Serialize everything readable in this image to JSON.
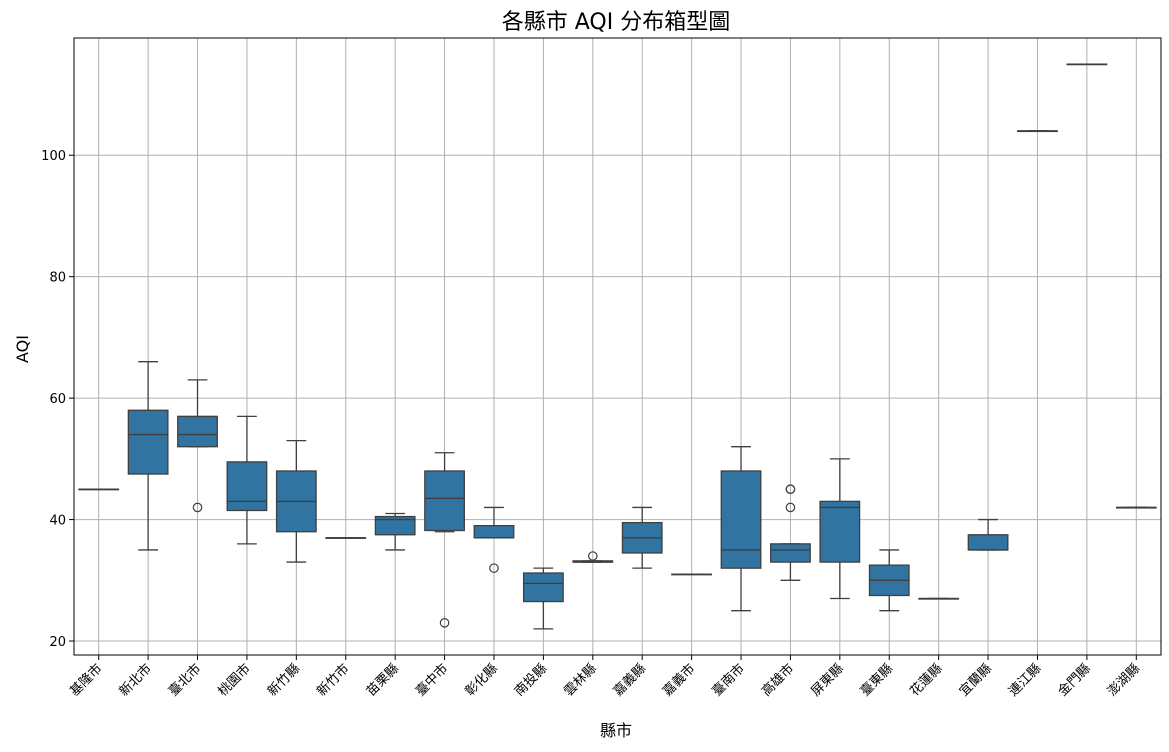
{
  "chart_data": {
    "type": "box",
    "title": "各縣市 AQI 分布箱型圖",
    "xlabel": "縣市",
    "ylabel": "AQI",
    "ylim": [
      17.7,
      119.3
    ],
    "yticks": [
      20,
      40,
      60,
      80,
      100
    ],
    "grid": true,
    "box_color": "#3274a1",
    "categories": [
      "基隆市",
      "新北市",
      "臺北市",
      "桃園市",
      "新竹縣",
      "新竹市",
      "苗栗縣",
      "臺中市",
      "彰化縣",
      "南投縣",
      "雲林縣",
      "嘉義縣",
      "嘉義市",
      "臺南市",
      "高雄市",
      "屏東縣",
      "臺東縣",
      "花蓮縣",
      "宜蘭縣",
      "連江縣",
      "金門縣",
      "澎湖縣"
    ],
    "boxes": [
      {
        "whisker_low": 45,
        "q1": 45,
        "median": 45,
        "q3": 45,
        "whisker_high": 45,
        "outliers": []
      },
      {
        "whisker_low": 35,
        "q1": 47.5,
        "median": 54,
        "q3": 58,
        "whisker_high": 66,
        "outliers": []
      },
      {
        "whisker_low": 52,
        "q1": 52,
        "median": 54,
        "q3": 57,
        "whisker_high": 63,
        "outliers": [
          42
        ]
      },
      {
        "whisker_low": 36,
        "q1": 41.5,
        "median": 43,
        "q3": 49.5,
        "whisker_high": 57,
        "outliers": []
      },
      {
        "whisker_low": 33,
        "q1": 38,
        "median": 43,
        "q3": 48,
        "whisker_high": 53,
        "outliers": []
      },
      {
        "whisker_low": 37,
        "q1": 37,
        "median": 37,
        "q3": 37,
        "whisker_high": 37,
        "outliers": []
      },
      {
        "whisker_low": 35,
        "q1": 37.5,
        "median": 40,
        "q3": 40.5,
        "whisker_high": 41,
        "outliers": []
      },
      {
        "whisker_low": 38,
        "q1": 38.2,
        "median": 43.5,
        "q3": 48,
        "whisker_high": 51,
        "outliers": [
          23
        ]
      },
      {
        "whisker_low": 37,
        "q1": 37,
        "median": 37,
        "q3": 39,
        "whisker_high": 42,
        "outliers": [
          32
        ]
      },
      {
        "whisker_low": 22,
        "q1": 26.5,
        "median": 29.5,
        "q3": 31.2,
        "whisker_high": 32,
        "outliers": []
      },
      {
        "whisker_low": 33,
        "q1": 33,
        "median": 33,
        "q3": 33.2,
        "whisker_high": 33.2,
        "outliers": [
          34
        ]
      },
      {
        "whisker_low": 32,
        "q1": 34.5,
        "median": 37,
        "q3": 39.5,
        "whisker_high": 42,
        "outliers": []
      },
      {
        "whisker_low": 31,
        "q1": 31,
        "median": 31,
        "q3": 31,
        "whisker_high": 31,
        "outliers": []
      },
      {
        "whisker_low": 25,
        "q1": 32,
        "median": 35,
        "q3": 48,
        "whisker_high": 52,
        "outliers": []
      },
      {
        "whisker_low": 30,
        "q1": 33,
        "median": 35,
        "q3": 36,
        "whisker_high": 36,
        "outliers": [
          42,
          45,
          45
        ]
      },
      {
        "whisker_low": 27,
        "q1": 33,
        "median": 42,
        "q3": 43,
        "whisker_high": 50,
        "outliers": []
      },
      {
        "whisker_low": 25,
        "q1": 27.5,
        "median": 30,
        "q3": 32.5,
        "whisker_high": 35,
        "outliers": []
      },
      {
        "whisker_low": 27,
        "q1": 27,
        "median": 27,
        "q3": 27,
        "whisker_high": 27,
        "outliers": []
      },
      {
        "whisker_low": 35,
        "q1": 35,
        "median": 35,
        "q3": 37.5,
        "whisker_high": 40,
        "outliers": []
      },
      {
        "whisker_low": 104,
        "q1": 104,
        "median": 104,
        "q3": 104,
        "whisker_high": 104,
        "outliers": []
      },
      {
        "whisker_low": 115,
        "q1": 115,
        "median": 115,
        "q3": 115,
        "whisker_high": 115,
        "outliers": []
      },
      {
        "whisker_low": 42,
        "q1": 42,
        "median": 42,
        "q3": 42,
        "whisker_high": 42,
        "outliers": []
      }
    ]
  }
}
